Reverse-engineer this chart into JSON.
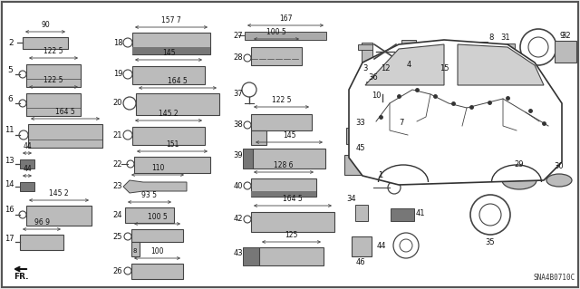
{
  "bg": "#f0f0f0",
  "border": "#555555",
  "gc": "#444444",
  "lc": "#bbbbbb",
  "dc": "#777777",
  "diagram_code": "SNA4B0710C",
  "figsize": [
    6.4,
    3.19
  ],
  "dpi": 100
}
